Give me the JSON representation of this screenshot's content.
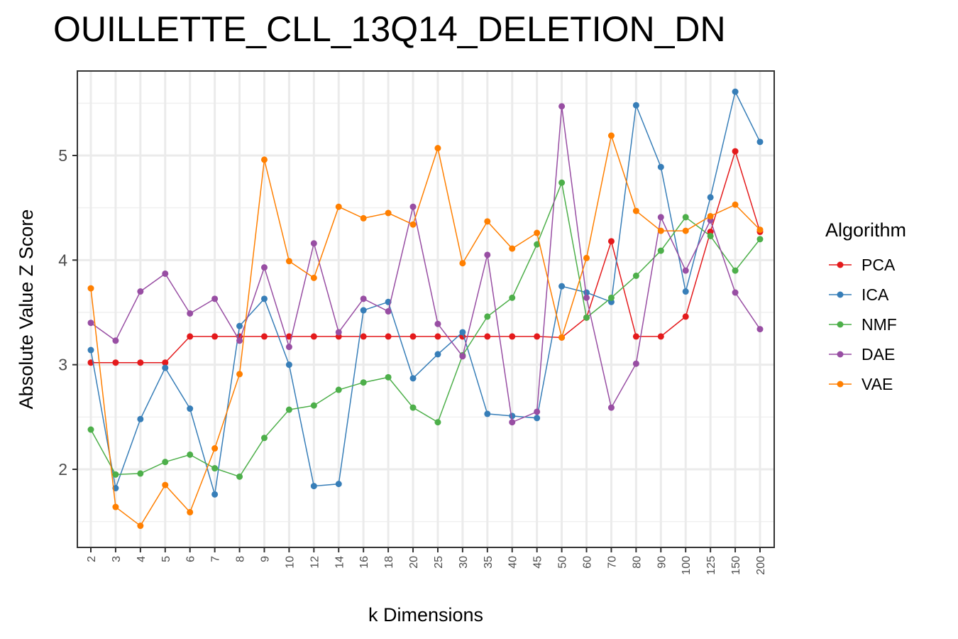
{
  "chart_data": {
    "type": "line",
    "title": "OUILLETTE_CLL_13Q14_DELETION_DN",
    "xlabel": "k Dimensions",
    "ylabel": "Absolute Value Z Score",
    "categories": [
      "2",
      "3",
      "4",
      "5",
      "6",
      "7",
      "8",
      "9",
      "10",
      "12",
      "14",
      "16",
      "18",
      "20",
      "25",
      "30",
      "35",
      "40",
      "45",
      "50",
      "60",
      "70",
      "80",
      "90",
      "100",
      "125",
      "150",
      "200"
    ],
    "y_ticks": [
      2,
      3,
      4,
      5
    ],
    "ylim": [
      1.25,
      5.8
    ],
    "grid": true,
    "legend": {
      "title": "Algorithm",
      "position": "right"
    },
    "series": [
      {
        "name": "PCA",
        "color": "#e41a1c",
        "values": [
          3.02,
          3.02,
          3.02,
          3.02,
          3.27,
          3.27,
          3.27,
          3.27,
          3.27,
          3.27,
          3.27,
          3.27,
          3.27,
          3.27,
          3.27,
          3.27,
          3.27,
          3.27,
          3.27,
          3.26,
          3.45,
          4.18,
          3.27,
          3.27,
          3.46,
          4.27,
          5.04,
          4.27
        ]
      },
      {
        "name": "ICA",
        "color": "#377eb8",
        "values": [
          3.14,
          1.82,
          2.48,
          2.97,
          2.58,
          1.76,
          3.37,
          3.63,
          3.0,
          1.84,
          1.86,
          3.52,
          3.6,
          2.87,
          3.1,
          3.31,
          2.53,
          2.51,
          2.49,
          3.75,
          3.69,
          3.6,
          5.48,
          4.89,
          3.7,
          4.6,
          5.61,
          5.13
        ]
      },
      {
        "name": "NMF",
        "color": "#4daf4a",
        "values": [
          2.38,
          1.95,
          1.96,
          2.07,
          2.14,
          2.01,
          1.93,
          2.3,
          2.57,
          2.61,
          2.76,
          2.83,
          2.88,
          2.59,
          2.45,
          3.09,
          3.46,
          3.64,
          4.15,
          4.74,
          3.45,
          3.64,
          3.85,
          4.09,
          4.41,
          4.23,
          3.9,
          4.2
        ]
      },
      {
        "name": "DAE",
        "color": "#984ea3",
        "values": [
          3.4,
          3.23,
          3.7,
          3.87,
          3.49,
          3.63,
          3.23,
          3.93,
          3.17,
          4.16,
          3.31,
          3.63,
          3.51,
          4.51,
          3.39,
          3.08,
          4.05,
          2.45,
          2.55,
          5.47,
          3.64,
          2.59,
          3.01,
          4.41,
          3.9,
          4.38,
          3.69,
          3.34
        ]
      },
      {
        "name": "VAE",
        "color": "#ff7f00",
        "values": [
          3.73,
          1.64,
          1.46,
          1.85,
          1.59,
          2.2,
          2.91,
          4.96,
          3.99,
          3.83,
          4.51,
          4.4,
          4.45,
          4.34,
          5.07,
          3.97,
          4.37,
          4.11,
          4.26,
          3.26,
          4.02,
          5.19,
          4.47,
          4.28,
          4.28,
          4.42,
          4.53,
          4.29
        ]
      }
    ]
  }
}
